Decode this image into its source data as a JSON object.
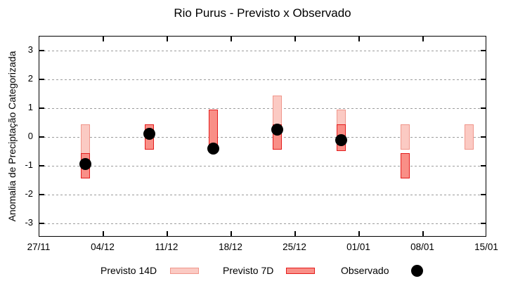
{
  "title": "Rio Purus - Previsto x Observado",
  "y_axis": {
    "label": "Anomalia de Preciptação Categorizada",
    "ticks": [
      3,
      2,
      1,
      0,
      -1,
      -2,
      -3
    ]
  },
  "x_axis": {
    "labels": [
      "27/11",
      "04/12",
      "11/12",
      "18/12",
      "25/12",
      "01/01",
      "08/01",
      "15/01"
    ]
  },
  "legend": {
    "p14": "Previsto 14D",
    "p7": "Previsto 7D",
    "obs": "Observado"
  },
  "colors": {
    "p14_fill": "#fbcac3",
    "p14_border": "#f0968b",
    "p7_fill": "#f98f87",
    "p7_border": "#e41c1c",
    "observed": "#000000",
    "grid": "#9c9c9c"
  },
  "chart_data": {
    "type": "bar",
    "title": "Rio Purus - Previsto x Observado",
    "xlabel": "",
    "ylabel": "Anomalia de Preciptação Categorizada",
    "ylim": [
      -3.5,
      3.5
    ],
    "x_tick_labels": [
      "27/11",
      "04/12",
      "11/12",
      "18/12",
      "25/12",
      "01/01",
      "08/01",
      "15/01"
    ],
    "x_tick_interval_days": 7,
    "grid": "dashed horizontal at integers",
    "legend_position": "below plot",
    "series_legend": [
      "Previsto 14D",
      "Previsto 7D",
      "Observado"
    ],
    "clusters": [
      {
        "date": "02/12",
        "day": 5,
        "previsto_14d": [
          -1.45,
          0.45
        ],
        "previsto_7d": [
          -1.45,
          -0.55
        ],
        "observado": -0.95
      },
      {
        "date": "09/12",
        "day": 12,
        "previsto_14d": null,
        "previsto_7d": [
          -0.45,
          0.45
        ],
        "observado": 0.1
      },
      {
        "date": "16/12",
        "day": 19,
        "previsto_14d": null,
        "previsto_7d": [
          -0.3,
          0.95
        ],
        "observado": -0.4
      },
      {
        "date": "23/12",
        "day": 26,
        "previsto_14d": [
          -0.45,
          1.45
        ],
        "previsto_7d": [
          -0.45,
          0.45
        ],
        "observado": 0.25
      },
      {
        "date": "30/12",
        "day": 33,
        "previsto_14d": [
          -0.5,
          0.95
        ],
        "previsto_7d": [
          -0.5,
          0.45
        ],
        "observado": -0.1
      },
      {
        "date": "06/01",
        "day": 40,
        "previsto_14d": [
          -0.45,
          0.45
        ],
        "previsto_7d": [
          -1.45,
          -0.55
        ],
        "observado": null
      },
      {
        "date": "13/01",
        "day": 47,
        "previsto_14d": [
          -0.45,
          0.45
        ],
        "previsto_7d": null,
        "observado": null
      }
    ]
  }
}
